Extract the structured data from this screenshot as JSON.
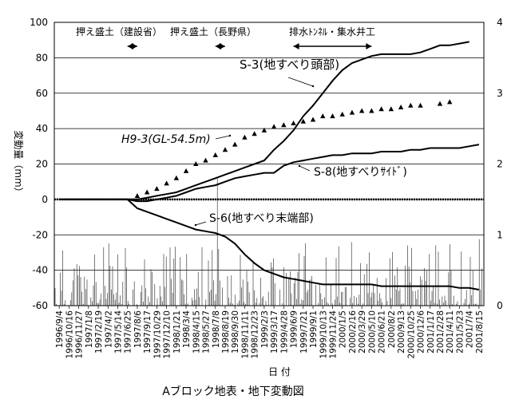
{
  "chart_data": {
    "type": "line",
    "title": "Aブロック地表・地下変動図",
    "xlabel": "日 付",
    "ylabel": "変動量（mm）",
    "ylim": [
      -60,
      100
    ],
    "y_ticks": [
      -60,
      -40,
      -20,
      0,
      20,
      40,
      60,
      80,
      100
    ],
    "y2lim": [
      0,
      4
    ],
    "y2_ticks": [
      0,
      1,
      2,
      3,
      4
    ],
    "grid": true,
    "categories": [
      "1996/9/4",
      "1996/10/16",
      "1996/11/27",
      "1997/1/8",
      "1997/2/19",
      "1997/4/2",
      "1997/5/14",
      "1997/6/25",
      "1997/8/6",
      "1997/9/17",
      "1997/10/29",
      "1997/12/10",
      "1998/1/21",
      "1998/3/4",
      "1998/4/15",
      "1998/5/27",
      "1998/7/8",
      "1998/8/19",
      "1998/9/30",
      "1998/11/11",
      "1998/12/23",
      "1999/2/3",
      "1999/3/17",
      "1999/4/28",
      "1999/6/9",
      "1999/7/21",
      "1999/9/1",
      "1999/10/13",
      "1999/11/24",
      "2000/1/5",
      "2000/2/16",
      "2000/3/29",
      "2000/5/10",
      "2000/6/21",
      "2000/8/2",
      "2000/9/13",
      "2000/10/25",
      "2000/12/6",
      "2001/1/17",
      "2001/2/28",
      "2001/4/11",
      "2001/5/23",
      "2001/7/4",
      "2001/8/15"
    ],
    "series": [
      {
        "name": "S-3(地すべり頭部)",
        "type": "line",
        "color": "#000000",
        "x": [
          "1996/9/4",
          "1997/6/25",
          "1997/8/6",
          "1997/9/17",
          "1997/10/29",
          "1997/12/10",
          "1998/1/21",
          "1998/3/4",
          "1998/4/15",
          "1998/5/27",
          "1998/7/8",
          "1998/8/19",
          "1998/9/30",
          "1998/11/11",
          "1998/12/23",
          "1999/2/3",
          "1999/3/17",
          "1999/4/28",
          "1999/6/9",
          "1999/7/21",
          "1999/9/1",
          "1999/10/13",
          "1999/11/24",
          "2000/1/5",
          "2000/2/16",
          "2000/3/29",
          "2000/5/10",
          "2000/6/21",
          "2000/8/2",
          "2000/9/13",
          "2000/10/25",
          "2000/12/6",
          "2001/1/17",
          "2001/2/28",
          "2001/4/11",
          "2001/5/23",
          "2001/7/4"
        ],
        "values": [
          0,
          0,
          0,
          1,
          2,
          3,
          4,
          6,
          8,
          10,
          12,
          14,
          16,
          18,
          20,
          22,
          28,
          33,
          39,
          47,
          53,
          60,
          67,
          73,
          77,
          79,
          81,
          82,
          82,
          82,
          82,
          83,
          85,
          87,
          87,
          88,
          89
        ]
      },
      {
        "name": "H9-3(GL-54.5m)",
        "type": "scatter",
        "marker": "triangle",
        "color": "#000000",
        "x": [
          "1997/8/6",
          "1997/9/17",
          "1997/10/29",
          "1997/12/10",
          "1998/1/21",
          "1998/3/4",
          "1998/4/15",
          "1998/5/27",
          "1998/7/8",
          "1998/8/19",
          "1998/9/30",
          "1998/11/11",
          "1998/12/23",
          "1999/2/3",
          "1999/3/17",
          "1999/4/28",
          "1999/6/9",
          "1999/7/21",
          "1999/9/1",
          "1999/10/13",
          "1999/11/24",
          "2000/1/5",
          "2000/2/16",
          "2000/3/29",
          "2000/5/10",
          "2000/6/21",
          "2000/8/2",
          "2000/9/13",
          "2000/10/25",
          "2000/12/6",
          "2001/2/28",
          "2001/4/11"
        ],
        "values": [
          2,
          4,
          6,
          9,
          12,
          16,
          20,
          22,
          25,
          28,
          31,
          35,
          37,
          39,
          41,
          42,
          43,
          44,
          45,
          47,
          47,
          48,
          49,
          50,
          50,
          51,
          51,
          52,
          53,
          53,
          54,
          55
        ]
      },
      {
        "name": "S-8(地すべりｻｲﾄﾞ)",
        "type": "line",
        "color": "#000000",
        "x": [
          "1996/9/4",
          "1997/6/25",
          "1997/8/6",
          "1997/9/17",
          "1997/10/29",
          "1997/12/10",
          "1998/1/21",
          "1998/3/4",
          "1998/4/15",
          "1998/5/27",
          "1998/7/8",
          "1998/8/19",
          "1998/9/30",
          "1998/11/11",
          "1998/12/23",
          "1999/2/3",
          "1999/3/17",
          "1999/4/28",
          "1999/6/9",
          "1999/7/21",
          "1999/9/1",
          "1999/10/13",
          "1999/11/24",
          "2000/1/5",
          "2000/2/16",
          "2000/3/29",
          "2000/5/10",
          "2000/6/21",
          "2000/8/2",
          "2000/9/13",
          "2000/10/25",
          "2000/12/6",
          "2001/1/17",
          "2001/2/28",
          "2001/4/11",
          "2001/5/23",
          "2001/7/4",
          "2001/8/15"
        ],
        "values": [
          0,
          0,
          -1,
          -1,
          0,
          1,
          2,
          4,
          6,
          7,
          8,
          10,
          12,
          13,
          14,
          15,
          15,
          19,
          21,
          22,
          23,
          24,
          25,
          25,
          26,
          26,
          26,
          27,
          27,
          27,
          28,
          28,
          29,
          29,
          29,
          29,
          30,
          31
        ]
      },
      {
        "name": "S-6(地すべり末端部)",
        "type": "line",
        "color": "#000000",
        "x": [
          "1996/9/4",
          "1997/6/25",
          "1997/8/6",
          "1997/9/17",
          "1997/10/29",
          "1997/12/10",
          "1998/1/21",
          "1998/3/4",
          "1998/4/15",
          "1998/5/27",
          "1998/7/8",
          "1998/8/19",
          "1998/9/30",
          "1998/11/11",
          "1998/12/23",
          "1999/2/3",
          "1999/3/17",
          "1999/4/28",
          "1999/6/9",
          "1999/7/21",
          "1999/9/1",
          "1999/10/13",
          "1999/11/24",
          "2000/1/5",
          "2000/2/16",
          "2000/3/29",
          "2000/5/10",
          "2000/6/21",
          "2000/8/2",
          "2000/9/13",
          "2000/10/25",
          "2000/12/6",
          "2001/1/17",
          "2001/2/28",
          "2001/4/11",
          "2001/5/23",
          "2001/7/4",
          "2001/8/15"
        ],
        "values": [
          0,
          0,
          -5,
          -7,
          -9,
          -11,
          -13,
          -15,
          -17,
          -18,
          -19,
          -21,
          -25,
          -31,
          -36,
          -40,
          -42,
          -44,
          -45,
          -46,
          -47,
          -48,
          -48,
          -48,
          -48,
          -48,
          -48,
          -49,
          -49,
          -49,
          -49,
          -49,
          -49,
          -49,
          -49,
          -50,
          -50,
          -51
        ]
      }
    ],
    "annotations": [
      {
        "text": "押え盛土（建設省）",
        "arrow_from": "1997/6/25",
        "arrow_to": "1997/8/6"
      },
      {
        "text": "押え盛土（長野県）",
        "arrow_from": "1998/7/8",
        "arrow_to": "1998/8/19"
      },
      {
        "text": "排水ﾄﾝﾈﾙ・集水井工",
        "arrow_from": "1999/6/9",
        "arrow_to": "2000/5/10"
      }
    ],
    "series_labels": [
      "S-3(地すべり頭部)",
      "H9-3(GL-54.5m)",
      "S-8(地すべりｻｲﾄﾞ)",
      "S-6(地すべり末端部)"
    ]
  }
}
